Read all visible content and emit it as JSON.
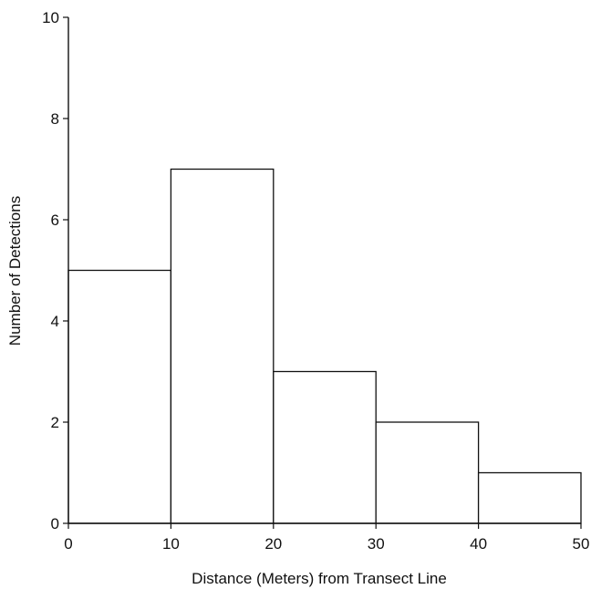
{
  "chart_data": {
    "type": "bar",
    "title": "",
    "xlabel": "Distance (Meters) from Transect Line",
    "ylabel": "Number of Detections",
    "xlim": [
      0,
      50
    ],
    "ylim": [
      0,
      10
    ],
    "bins": [
      {
        "from": 0,
        "to": 10,
        "value": 5
      },
      {
        "from": 10,
        "to": 20,
        "value": 7
      },
      {
        "from": 20,
        "to": 30,
        "value": 3
      },
      {
        "from": 30,
        "to": 40,
        "value": 2
      },
      {
        "from": 40,
        "to": 50,
        "value": 1
      }
    ],
    "x_ticks": [
      "0",
      "10",
      "20",
      "30",
      "40",
      "50"
    ],
    "y_ticks": [
      "0",
      "2",
      "4",
      "6",
      "8",
      "10"
    ],
    "grid": false,
    "colors": {
      "bar_fill": "#ffffff",
      "stroke": "#111111"
    }
  }
}
